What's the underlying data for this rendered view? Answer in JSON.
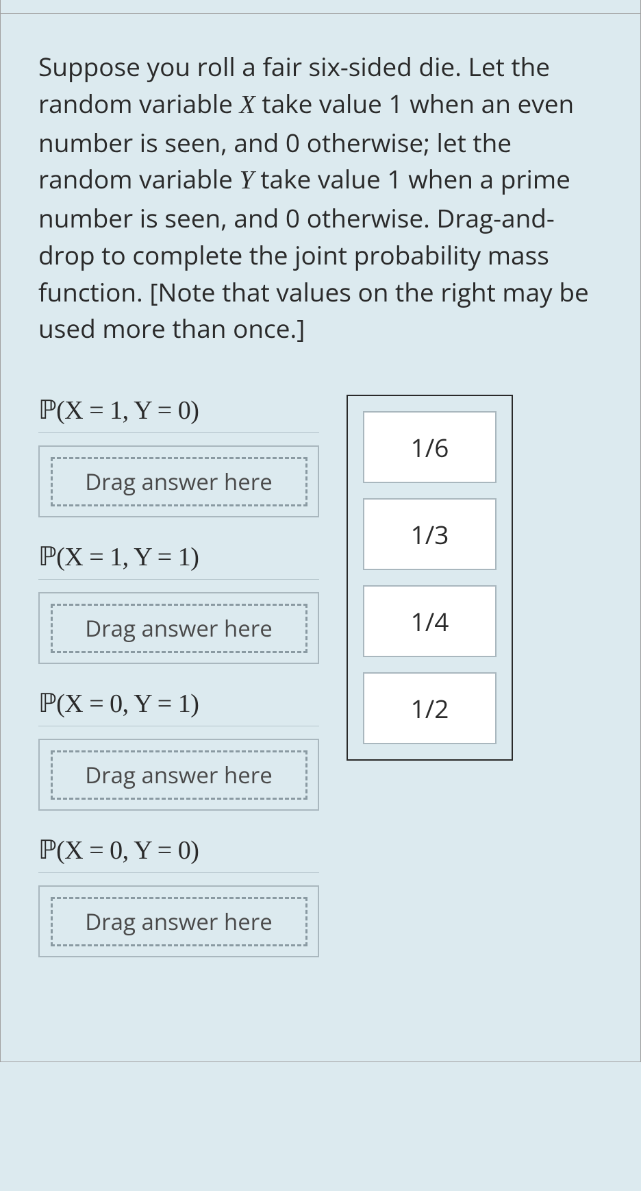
{
  "question": {
    "text_parts": [
      "Suppose you roll a fair six-sided die. Let the random variable ",
      " take value 1 when an even number is seen, and 0 otherwise; let the random variable ",
      " take value 1 when a prime number is seen, and 0 otherwise. Drag-and-drop to complete the joint probability mass function. [Note that values on the right may be used more than once.]"
    ],
    "var_x": "X",
    "var_y": "Y"
  },
  "dropzones": [
    {
      "formula": "ℙ(X = 1, Y = 0)",
      "placeholder": "Drag answer here"
    },
    {
      "formula": "ℙ(X = 1, Y = 1)",
      "placeholder": "Drag answer here"
    },
    {
      "formula": "ℙ(X = 0, Y = 1)",
      "placeholder": "Drag answer here"
    },
    {
      "formula": "ℙ(X = 0, Y = 0)",
      "placeholder": "Drag answer here"
    }
  ],
  "answers": [
    {
      "label": "1/6"
    },
    {
      "label": "1/3"
    },
    {
      "label": "1/4"
    },
    {
      "label": "1/2"
    }
  ],
  "colors": {
    "background": "#dceaef",
    "border": "#a0a0a0",
    "text": "#2a2a2a",
    "box_border": "#a9b7be",
    "dash_border": "#8a9aa2",
    "chip_bg": "#ffffff",
    "panel_border": "#2a2a2a",
    "divider": "#b5c5cc"
  },
  "typography": {
    "body_fontsize": 37,
    "math_fontsize": 38,
    "chip_fontsize": 37,
    "placeholder_fontsize": 33
  }
}
